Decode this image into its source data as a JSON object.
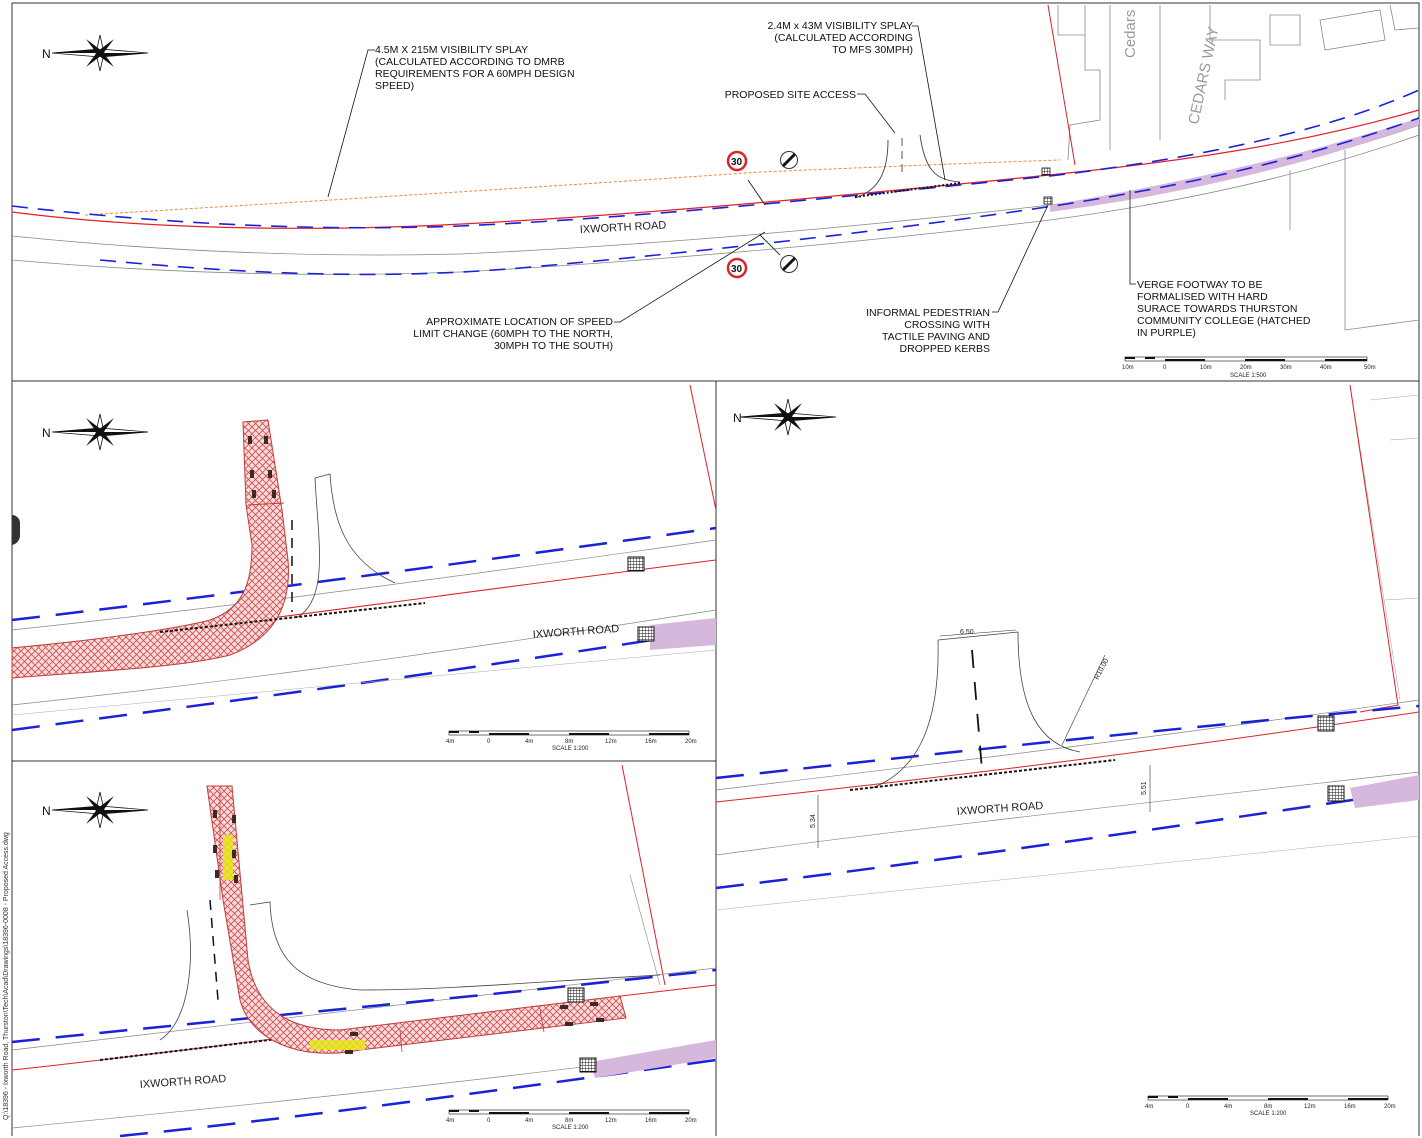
{
  "colors": {
    "boundary_red": "#e0202a",
    "splay_blue": "#1a22d6",
    "splay_orange": "#f0883a",
    "verge_purple": "#d7b8dd",
    "tracking_hatch": "#d64a4a",
    "vehicle_yellow": "#e6e61a"
  },
  "north_label": "N",
  "panel_top": {
    "road_name": "IXWORTH ROAD",
    "street_cedars": "Cedars",
    "street_cedars_way": "CEDARS WAY",
    "speed_sign": "30",
    "callout_splay_main": [
      "4.5M X 215M VISIBILITY SPLAY",
      "(CALCULATED ACCORDING TO DMRB",
      "REQUIREMENTS FOR A 60MPH DESIGN",
      "SPEED)"
    ],
    "callout_splay_access": [
      "2.4M x 43M VISIBILITY SPLAY",
      "(CALCULATED ACCORDING",
      "TO MFS 30MPH)"
    ],
    "callout_site_access": "PROPOSED SITE ACCESS",
    "callout_speed_change": [
      "APPROXIMATE LOCATION OF SPEED",
      "LIMIT CHANGE (60MPH TO THE NORTH,",
      "30MPH TO THE SOUTH)"
    ],
    "callout_crossing": [
      "INFORMAL PEDESTRIAN",
      "CROSSING WITH",
      "TACTILE PAVING AND",
      "DROPPED KERBS"
    ],
    "callout_footway": [
      "VERGE FOOTWAY TO BE",
      "FORMALISED WITH HARD",
      "SURACE TOWARDS THURSTON",
      "COMMUNITY COLLEGE (HATCHED",
      "IN PURPLE)"
    ],
    "scale_ticks": [
      "10m",
      "0",
      "10m",
      "20m",
      "30m",
      "40m",
      "50m"
    ],
    "scale_label": "SCALE 1:500"
  },
  "panel_mid_left": {
    "road_name": "IXWORTH ROAD",
    "scale_ticks": [
      "4m",
      "0",
      "4m",
      "8m",
      "12m",
      "16m",
      "20m"
    ],
    "scale_label": "SCALE 1:200"
  },
  "panel_right": {
    "road_name": "IXWORTH ROAD",
    "dim_width": "6.50",
    "dim_radius": "R10.00",
    "dim_left": "5.34",
    "dim_right": "5.51",
    "scale_ticks": [
      "4m",
      "0",
      "4m",
      "8m",
      "12m",
      "16m",
      "20m"
    ],
    "scale_label": "SCALE 1:200"
  },
  "panel_bottom_left": {
    "road_name": "IXWORTH ROAD",
    "scale_ticks": [
      "4m",
      "0",
      "4m",
      "8m",
      "12m",
      "16m",
      "20m"
    ],
    "scale_label": "SCALE 1:200"
  },
  "file_path": "Q:\\18396 - Ixworth Road, Thurston\\Tech\\Acad\\Drawings\\18396-0008 - Proposed Access.dwg"
}
